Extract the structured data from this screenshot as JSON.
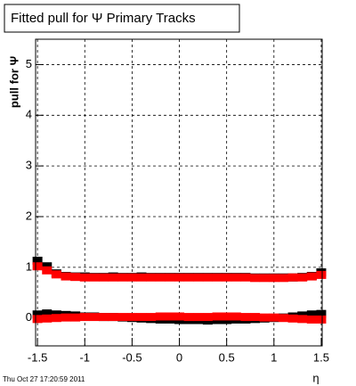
{
  "chart_data": {
    "type": "scatter",
    "title": "Fitted pull for  Ψ   Primary Tracks",
    "y_label": "pull for  Ψ",
    "x_label": "η",
    "timestamp": "Thu Oct 27 17:20:59 2011",
    "x": [
      -1.5,
      -1.4,
      -1.3,
      -1.2,
      -1.1,
      -1.0,
      -0.9,
      -0.8,
      -0.7,
      -0.6,
      -0.5,
      -0.4,
      -0.3,
      -0.2,
      -0.1,
      0,
      0.1,
      0.2,
      0.3,
      0.4,
      0.5,
      0.6,
      0.7,
      0.8,
      0.9,
      1.0,
      1.1,
      1.2,
      1.3,
      1.4,
      1.5
    ],
    "series": [
      {
        "color": "#000000",
        "values": [
          1.13,
          1.02,
          0.88,
          0.83,
          0.82,
          0.82,
          0.81,
          0.81,
          0.82,
          0.81,
          0.81,
          0.82,
          0.81,
          0.81,
          0.81,
          0.81,
          0.81,
          0.81,
          0.81,
          0.81,
          0.81,
          0.81,
          0.81,
          0.8,
          0.8,
          0.8,
          0.8,
          0.8,
          0.81,
          0.83,
          0.9
        ]
      },
      {
        "color": "#000000",
        "values": [
          0.07,
          0.09,
          0.07,
          0.06,
          0.05,
          0.03,
          0.03,
          0.02,
          0.02,
          0.01,
          0.0,
          -0.01,
          -0.02,
          -0.03,
          -0.03,
          -0.04,
          -0.04,
          -0.04,
          -0.05,
          -0.04,
          -0.04,
          -0.03,
          -0.03,
          -0.02,
          -0.01,
          0.0,
          0.01,
          0.03,
          0.05,
          0.07,
          0.08
        ]
      },
      {
        "color": "#ff0000",
        "values": [
          1.02,
          0.94,
          0.86,
          0.82,
          0.81,
          0.8,
          0.8,
          0.8,
          0.8,
          0.8,
          0.8,
          0.8,
          0.8,
          0.8,
          0.8,
          0.8,
          0.8,
          0.8,
          0.8,
          0.8,
          0.8,
          0.8,
          0.8,
          0.79,
          0.79,
          0.79,
          0.79,
          0.8,
          0.8,
          0.82,
          0.85
        ]
      },
      {
        "color": "#ff0000",
        "values": [
          -0.02,
          -0.01,
          0.0,
          0.01,
          0.01,
          0.02,
          0.02,
          0.02,
          0.02,
          0.02,
          0.02,
          0.02,
          0.02,
          0.03,
          0.03,
          0.03,
          0.02,
          0.02,
          0.02,
          0.03,
          0.03,
          0.03,
          0.02,
          0.02,
          0.01,
          0.01,
          0.0,
          -0.01,
          -0.02,
          -0.03,
          -0.03
        ]
      }
    ],
    "xlim": [
      -1.52,
      1.51
    ],
    "ylim": [
      -0.55,
      5.5
    ],
    "xticks": [
      -1.5,
      -1,
      -0.5,
      0,
      0.5,
      1,
      1.5
    ],
    "yticks": [
      0,
      1,
      2,
      3,
      4,
      5
    ],
    "grid": true
  }
}
